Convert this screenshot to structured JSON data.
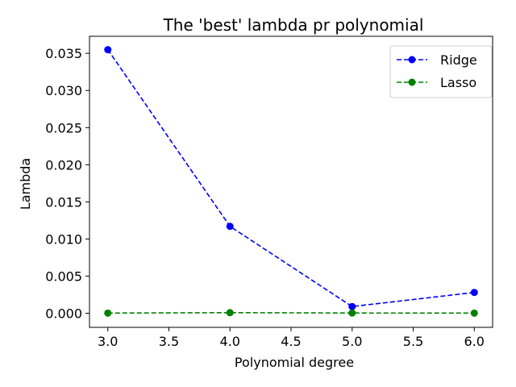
{
  "chart_data": {
    "type": "line",
    "title": "The 'best' lambda pr polynomial",
    "xlabel": "Polynomial degree",
    "ylabel": "Lambda",
    "x": [
      3.0,
      4.0,
      5.0,
      6.0
    ],
    "xlim": [
      2.85,
      6.15
    ],
    "ylim": [
      -0.0019,
      0.0373
    ],
    "xticks": [
      3.0,
      3.5,
      4.0,
      4.5,
      5.0,
      5.5,
      6.0
    ],
    "xtick_labels": [
      "3.0",
      "3.5",
      "4.0",
      "4.5",
      "5.0",
      "5.5",
      "6.0"
    ],
    "yticks": [
      0.0,
      0.005,
      0.01,
      0.015,
      0.02,
      0.025,
      0.03,
      0.035
    ],
    "ytick_labels": [
      "0.000",
      "0.005",
      "0.010",
      "0.015",
      "0.020",
      "0.025",
      "0.030",
      "0.035"
    ],
    "series": [
      {
        "name": "Ridge",
        "color": "#0000ff",
        "linestyle": "dashed",
        "marker": "circle",
        "values": [
          0.0355,
          0.0117,
          0.0009,
          0.0028
        ]
      },
      {
        "name": "Lasso",
        "color": "#008000",
        "linestyle": "dashed",
        "marker": "circle",
        "values": [
          2e-05,
          8e-05,
          3e-05,
          2e-05
        ]
      }
    ],
    "legend": {
      "position": "top-right"
    },
    "grid": false
  }
}
